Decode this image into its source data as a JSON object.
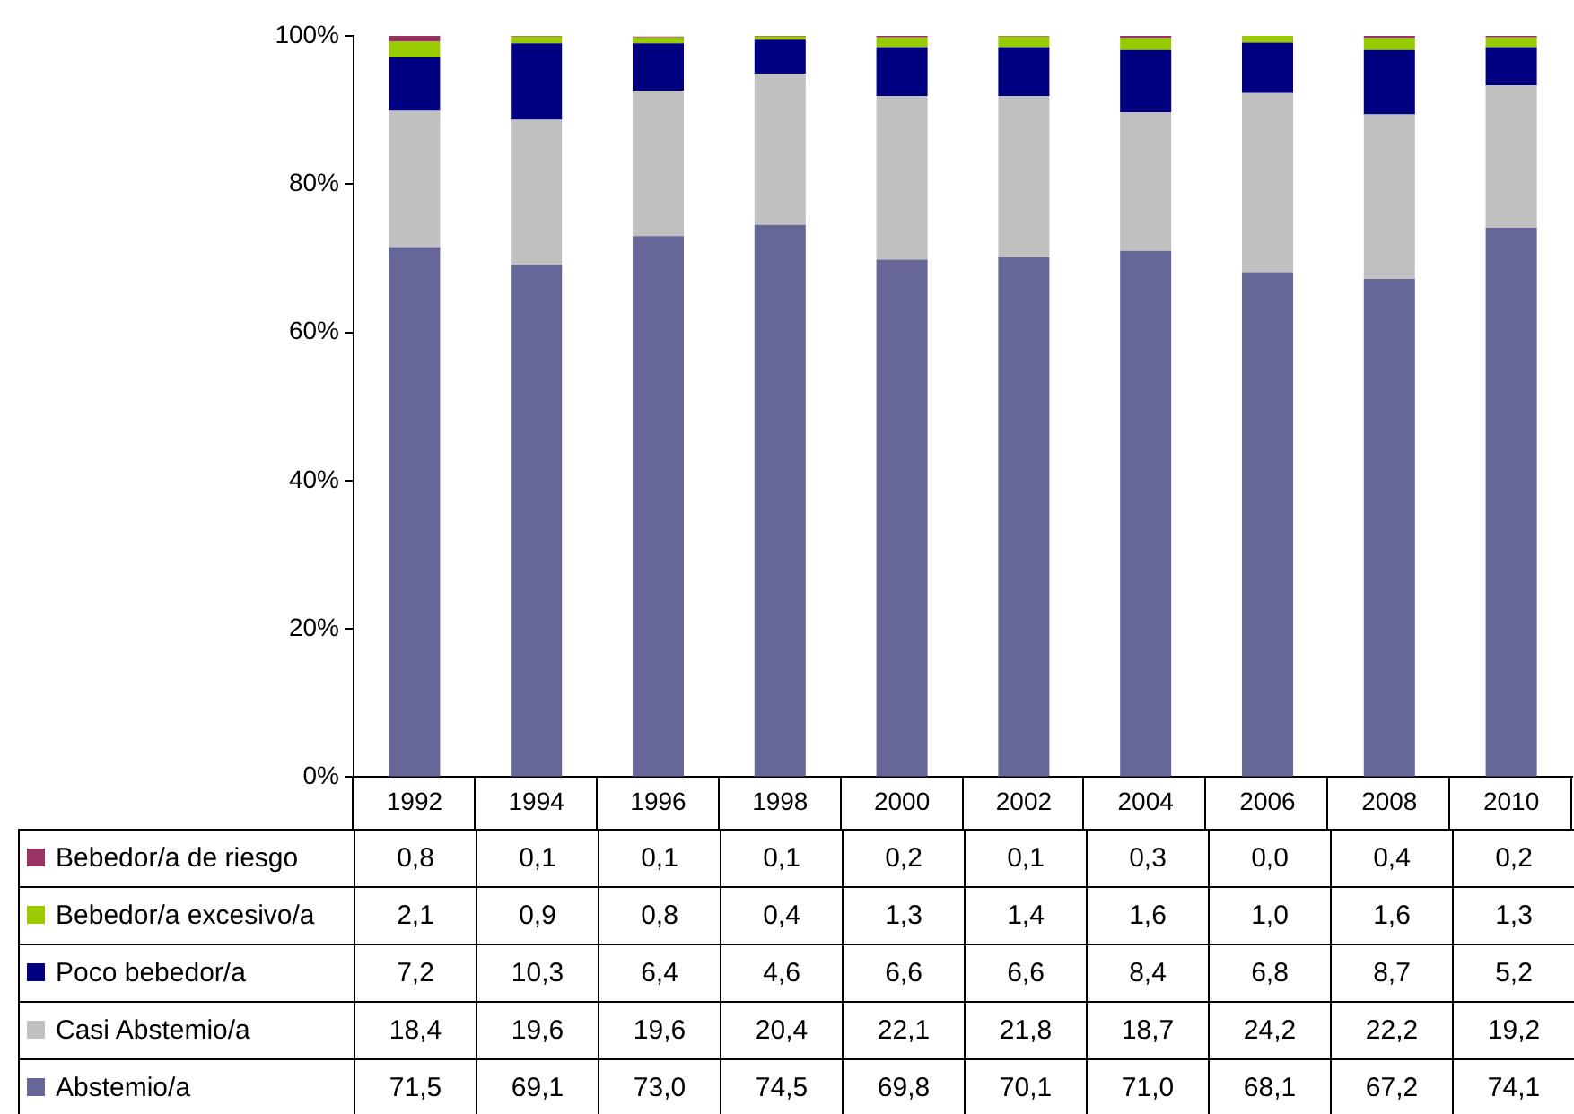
{
  "chart_data": {
    "type": "bar",
    "stacked": true,
    "legend": "bottom",
    "categories": [
      "1992",
      "1994",
      "1996",
      "1998",
      "2000",
      "2002",
      "2004",
      "2006",
      "2008",
      "2010"
    ],
    "ylim": [
      0,
      100
    ],
    "yticks": [
      {
        "value": 0,
        "label": "0%"
      },
      {
        "value": 20,
        "label": "20%"
      },
      {
        "value": 40,
        "label": "40%"
      },
      {
        "value": 60,
        "label": "60%"
      },
      {
        "value": 80,
        "label": "80%"
      },
      {
        "value": 100,
        "label": "100%"
      }
    ],
    "series": [
      {
        "name": "Abstemio/a",
        "color": "#666699",
        "values": [
          71.5,
          69.1,
          73.0,
          74.5,
          69.8,
          70.1,
          71.0,
          68.1,
          67.2,
          74.1
        ],
        "value_labels": [
          "71,5",
          "69,1",
          "73,0",
          "74,5",
          "69,8",
          "70,1",
          "71,0",
          "68,1",
          "67,2",
          "74,1"
        ]
      },
      {
        "name": "Casi Abstemio/a",
        "color": "#c0c0c0",
        "values": [
          18.4,
          19.6,
          19.6,
          20.4,
          22.1,
          21.8,
          18.7,
          24.2,
          22.2,
          19.2
        ],
        "value_labels": [
          "18,4",
          "19,6",
          "19,6",
          "20,4",
          "22,1",
          "21,8",
          "18,7",
          "24,2",
          "22,2",
          "19,2"
        ]
      },
      {
        "name": "Poco bebedor/a",
        "color": "#000080",
        "values": [
          7.2,
          10.3,
          6.4,
          4.6,
          6.6,
          6.6,
          8.4,
          6.8,
          8.7,
          5.2
        ],
        "value_labels": [
          "7,2",
          "10,3",
          "6,4",
          "4,6",
          "6,6",
          "6,6",
          "8,4",
          "6,8",
          "8,7",
          "5,2"
        ]
      },
      {
        "name": "Bebedor/a excesivo/a",
        "color": "#99cc00",
        "values": [
          2.1,
          0.9,
          0.8,
          0.4,
          1.3,
          1.4,
          1.6,
          1.0,
          1.6,
          1.3
        ],
        "value_labels": [
          "2,1",
          "0,9",
          "0,8",
          "0,4",
          "1,3",
          "1,4",
          "1,6",
          "1,0",
          "1,6",
          "1,3"
        ]
      },
      {
        "name": "Bebedor/a de riesgo",
        "color": "#993366",
        "values": [
          0.8,
          0.1,
          0.1,
          0.1,
          0.2,
          0.1,
          0.3,
          0.0,
          0.4,
          0.2
        ],
        "value_labels": [
          "0,8",
          "0,1",
          "0,1",
          "0,1",
          "0,2",
          "0,1",
          "0,3",
          "0,0",
          "0,4",
          "0,2"
        ]
      }
    ]
  }
}
